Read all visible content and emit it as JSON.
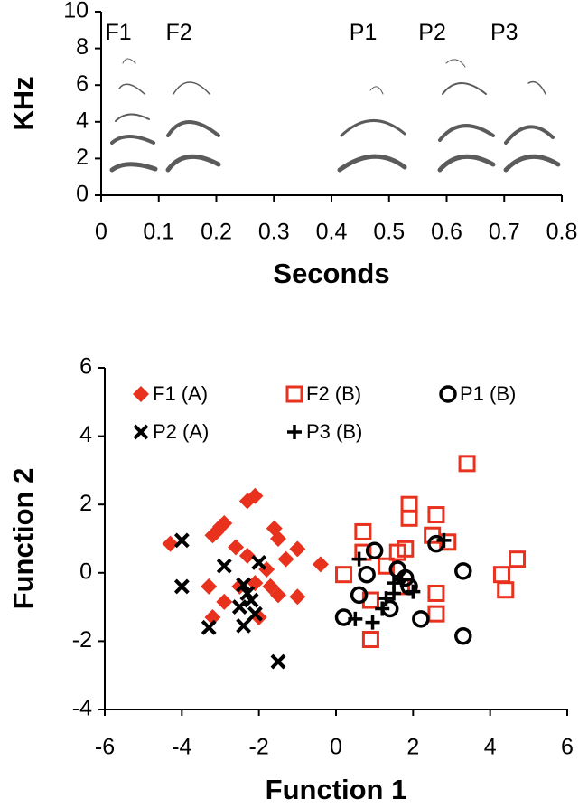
{
  "chart_data": [
    {
      "type": "spectrogram",
      "xlabel": "Seconds",
      "ylabel": "KHz",
      "xlim": [
        0,
        0.8
      ],
      "xticks": [
        0,
        0.1,
        0.2,
        0.3,
        0.4,
        0.5,
        0.6,
        0.7,
        0.8
      ],
      "ylim": [
        0,
        10
      ],
      "yticks": [
        0,
        2,
        4,
        6,
        8,
        10
      ],
      "annotations": [
        {
          "text": "F1",
          "x": 0.03,
          "y": 8.8
        },
        {
          "text": "F2",
          "x": 0.135,
          "y": 8.8
        },
        {
          "text": "P1",
          "x": 0.455,
          "y": 8.8
        },
        {
          "text": "P2",
          "x": 0.575,
          "y": 8.8
        },
        {
          "text": "P3",
          "x": 0.7,
          "y": 8.8
        }
      ]
    },
    {
      "type": "scatter",
      "xlabel": "Function 1",
      "ylabel": "Function 2",
      "xlim": [
        -6,
        6
      ],
      "xticks": [
        -6,
        -4,
        -2,
        0,
        2,
        4,
        6
      ],
      "ylim": [
        -4,
        6
      ],
      "yticks": [
        -4,
        -2,
        0,
        2,
        4,
        6
      ],
      "legend": "upper left",
      "series": [
        {
          "name": "F1 (A)",
          "color": "#e8321e",
          "marker": "diamond",
          "x": [
            -4.3,
            -3.1,
            -3.0,
            -2.9,
            -3.2,
            -2.3,
            -2.1,
            -2.6,
            -2.3,
            -1.6,
            -1.5,
            -1.3,
            -1.0,
            -3.3,
            -2.9,
            -2.1,
            -1.7,
            -1.5,
            -1.0,
            -3.2,
            -2.0,
            -0.4,
            -2.5,
            -1.8
          ],
          "values": [
            0.85,
            1.2,
            1.35,
            1.45,
            1.1,
            2.1,
            2.25,
            0.75,
            0.5,
            1.3,
            1.0,
            0.4,
            0.7,
            -0.4,
            -0.85,
            -0.3,
            -0.4,
            -0.65,
            -0.7,
            -1.3,
            -1.3,
            0.25,
            -0.4,
            0.1
          ]
        },
        {
          "name": "F2 (B)",
          "color": "#e8321e",
          "marker": "square",
          "x": [
            0.2,
            0.7,
            0.7,
            0.9,
            0.9,
            1.6,
            1.8,
            1.9,
            1.9,
            2.5,
            2.6,
            2.6,
            2.6,
            2.9,
            3.4,
            4.3,
            4.4,
            4.7,
            1.7,
            1.3
          ],
          "values": [
            -0.05,
            1.2,
            0.6,
            -0.8,
            -1.95,
            0.6,
            0.7,
            2.0,
            1.6,
            1.1,
            1.7,
            -0.6,
            -1.2,
            0.9,
            3.2,
            -0.05,
            -0.5,
            0.4,
            -0.4,
            0.2
          ]
        },
        {
          "name": "P1 (B)",
          "color": "#000000",
          "marker": "circle",
          "x": [
            1.0,
            0.8,
            0.6,
            0.2,
            1.6,
            1.8,
            1.9,
            1.4,
            2.2,
            2.6,
            3.3,
            3.3
          ],
          "values": [
            0.65,
            -0.05,
            -0.65,
            -1.3,
            0.1,
            -0.15,
            -0.4,
            -1.05,
            -1.35,
            0.85,
            0.05,
            -1.85
          ]
        },
        {
          "name": "P2 (A)",
          "color": "#000000",
          "marker": "x",
          "x": [
            -4.0,
            -4.0,
            -3.3,
            -2.9,
            -2.4,
            -2.3,
            -2.5,
            -2.4,
            -2.0,
            -2.1,
            -1.5,
            -2.2
          ],
          "values": [
            0.95,
            -0.4,
            -1.6,
            0.2,
            -0.35,
            -0.6,
            -1.0,
            -1.55,
            0.3,
            -1.2,
            -2.6,
            -0.8
          ]
        },
        {
          "name": "P3 (B)",
          "color": "#000000",
          "marker": "plus",
          "x": [
            0.6,
            0.5,
            0.95,
            1.5,
            1.7,
            1.5,
            2.0,
            1.3,
            2.8,
            1.2
          ],
          "values": [
            0.4,
            -1.35,
            -1.45,
            -0.6,
            -0.2,
            -0.3,
            -0.55,
            -0.75,
            0.95,
            -1.05
          ]
        }
      ]
    }
  ]
}
